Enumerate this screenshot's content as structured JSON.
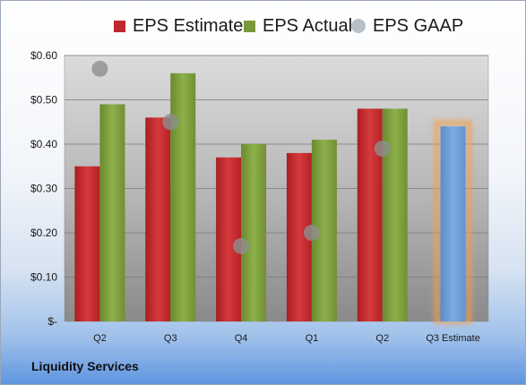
{
  "chart_data": {
    "type": "bar",
    "categories": [
      "Q2",
      "Q3",
      "Q4",
      "Q1",
      "Q2",
      "Q3 Estimate"
    ],
    "series": [
      {
        "name": "EPS Estimate",
        "type": "bar",
        "color": "#c0282d",
        "values": [
          0.35,
          0.46,
          0.37,
          0.38,
          0.48,
          null
        ]
      },
      {
        "name": "EPS Actual",
        "type": "bar",
        "color": "#7a9a3a",
        "values": [
          0.49,
          0.56,
          0.4,
          0.41,
          0.48,
          null
        ]
      },
      {
        "name": "EPS GAAP",
        "type": "scatter",
        "color": "#9aa3ad",
        "values": [
          0.57,
          0.45,
          0.17,
          0.2,
          0.39,
          null
        ]
      }
    ],
    "estimate_bar": {
      "category": "Q3 Estimate",
      "value": 0.44,
      "color": "#6f9fd8",
      "highlight": "#f0a050"
    },
    "ylim": [
      0,
      0.6
    ],
    "yticks": [
      "$-",
      "$0.10",
      "$0.20",
      "$0.30",
      "$0.40",
      "$0.50",
      "$0.60"
    ],
    "grid": true,
    "legend_position": "top"
  },
  "company": "Liquidity Services"
}
